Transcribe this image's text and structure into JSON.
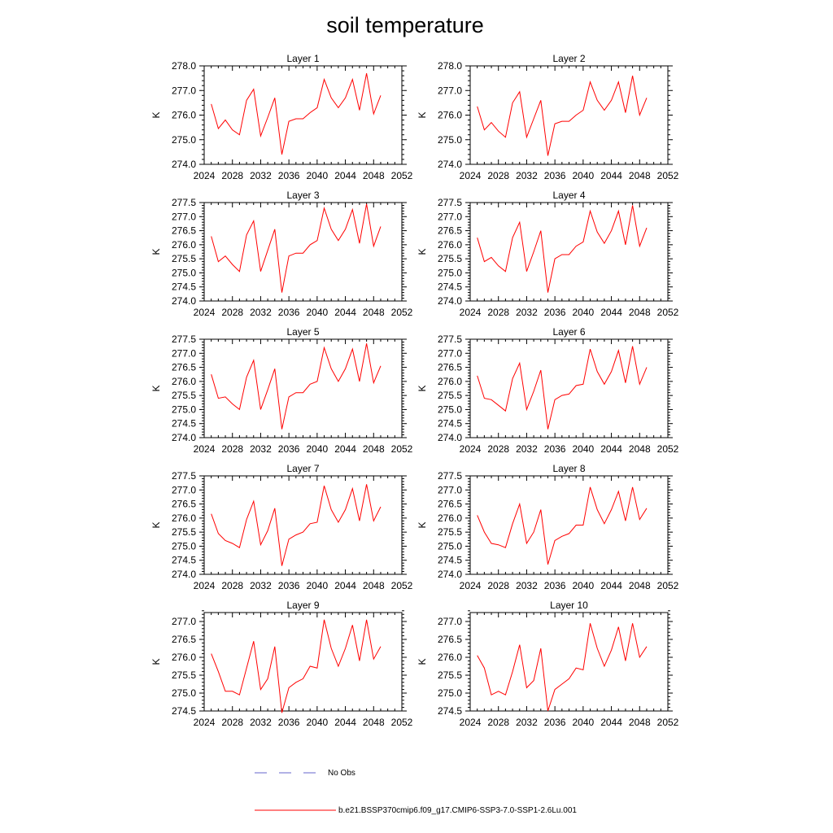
{
  "title": "soil temperature",
  "colors": {
    "model": "#ff0000",
    "obs": "#6666cc"
  },
  "legend": {
    "obs_label": "No Obs",
    "model_label": "b.e21.BSSP370cmip6.f09_g17.CMIP6-SSP3-7.0-SSP1-2.6Lu.001"
  },
  "chart_data": [
    {
      "type": "line",
      "title": "Layer 1",
      "ylabel": "K",
      "xlim": [
        2024,
        2052
      ],
      "xticks": [
        2024,
        2028,
        2032,
        2036,
        2040,
        2044,
        2048,
        2052
      ],
      "ylim": [
        274.0,
        278.0
      ],
      "yticks": [
        274.0,
        275.0,
        276.0,
        277.0,
        278.0
      ],
      "x": [
        2025,
        2026,
        2027,
        2028,
        2029,
        2030,
        2031,
        2032,
        2033,
        2034,
        2035,
        2036,
        2037,
        2038,
        2039,
        2040,
        2041,
        2042,
        2043,
        2044,
        2045,
        2046,
        2047,
        2048,
        2049
      ],
      "series": [
        {
          "values": [
            276.45,
            275.45,
            275.8,
            275.4,
            275.2,
            276.6,
            277.05,
            275.15,
            275.9,
            276.7,
            274.4,
            275.75,
            275.85,
            275.85,
            276.1,
            276.3,
            277.45,
            276.7,
            276.3,
            276.7,
            277.45,
            276.2,
            277.7,
            276.05,
            276.8
          ]
        }
      ]
    },
    {
      "type": "line",
      "title": "Layer 2",
      "ylabel": "K",
      "xlim": [
        2024,
        2052
      ],
      "xticks": [
        2024,
        2028,
        2032,
        2036,
        2040,
        2044,
        2048,
        2052
      ],
      "ylim": [
        274.0,
        278.0
      ],
      "yticks": [
        274.0,
        275.0,
        276.0,
        277.0,
        278.0
      ],
      "x": [
        2025,
        2026,
        2027,
        2028,
        2029,
        2030,
        2031,
        2032,
        2033,
        2034,
        2035,
        2036,
        2037,
        2038,
        2039,
        2040,
        2041,
        2042,
        2043,
        2044,
        2045,
        2046,
        2047,
        2048,
        2049
      ],
      "series": [
        {
          "values": [
            276.35,
            275.4,
            275.7,
            275.35,
            275.1,
            276.5,
            276.95,
            275.1,
            275.85,
            276.6,
            274.35,
            275.65,
            275.75,
            275.75,
            276.0,
            276.2,
            277.35,
            276.6,
            276.2,
            276.6,
            277.35,
            276.1,
            277.6,
            276.0,
            276.7
          ]
        }
      ]
    },
    {
      "type": "line",
      "title": "Layer 3",
      "ylabel": "K",
      "xlim": [
        2024,
        2052
      ],
      "xticks": [
        2024,
        2028,
        2032,
        2036,
        2040,
        2044,
        2048,
        2052
      ],
      "ylim": [
        274.0,
        277.5
      ],
      "yticks": [
        274.0,
        274.5,
        275.0,
        275.5,
        276.0,
        276.5,
        277.0,
        277.5
      ],
      "x": [
        2025,
        2026,
        2027,
        2028,
        2029,
        2030,
        2031,
        2032,
        2033,
        2034,
        2035,
        2036,
        2037,
        2038,
        2039,
        2040,
        2041,
        2042,
        2043,
        2044,
        2045,
        2046,
        2047,
        2048,
        2049
      ],
      "series": [
        {
          "values": [
            276.3,
            275.4,
            275.6,
            275.3,
            275.05,
            276.35,
            276.85,
            275.05,
            275.8,
            276.55,
            274.3,
            275.6,
            275.7,
            275.7,
            276.0,
            276.15,
            277.3,
            276.55,
            276.15,
            276.55,
            277.25,
            276.05,
            277.45,
            275.95,
            276.65
          ]
        }
      ]
    },
    {
      "type": "line",
      "title": "Layer 4",
      "ylabel": "K",
      "xlim": [
        2024,
        2052
      ],
      "xticks": [
        2024,
        2028,
        2032,
        2036,
        2040,
        2044,
        2048,
        2052
      ],
      "ylim": [
        274.0,
        277.5
      ],
      "yticks": [
        274.0,
        274.5,
        275.0,
        275.5,
        276.0,
        276.5,
        277.0,
        277.5
      ],
      "x": [
        2025,
        2026,
        2027,
        2028,
        2029,
        2030,
        2031,
        2032,
        2033,
        2034,
        2035,
        2036,
        2037,
        2038,
        2039,
        2040,
        2041,
        2042,
        2043,
        2044,
        2045,
        2046,
        2047,
        2048,
        2049
      ],
      "series": [
        {
          "values": [
            276.25,
            275.4,
            275.55,
            275.25,
            275.05,
            276.25,
            276.8,
            275.05,
            275.75,
            276.5,
            274.3,
            275.5,
            275.65,
            275.65,
            275.95,
            276.1,
            277.2,
            276.45,
            276.05,
            276.5,
            277.2,
            276.0,
            277.4,
            275.95,
            276.6
          ]
        }
      ]
    },
    {
      "type": "line",
      "title": "Layer 5",
      "ylabel": "K",
      "xlim": [
        2024,
        2052
      ],
      "xticks": [
        2024,
        2028,
        2032,
        2036,
        2040,
        2044,
        2048,
        2052
      ],
      "ylim": [
        274.0,
        277.5
      ],
      "yticks": [
        274.0,
        274.5,
        275.0,
        275.5,
        276.0,
        276.5,
        277.0,
        277.5
      ],
      "x": [
        2025,
        2026,
        2027,
        2028,
        2029,
        2030,
        2031,
        2032,
        2033,
        2034,
        2035,
        2036,
        2037,
        2038,
        2039,
        2040,
        2041,
        2042,
        2043,
        2044,
        2045,
        2046,
        2047,
        2048,
        2049
      ],
      "series": [
        {
          "values": [
            276.25,
            275.4,
            275.45,
            275.2,
            275.0,
            276.15,
            276.75,
            275.0,
            275.7,
            276.45,
            274.3,
            275.45,
            275.6,
            275.6,
            275.9,
            276.0,
            277.2,
            276.45,
            276.0,
            276.45,
            277.15,
            276.0,
            277.35,
            275.95,
            276.55
          ]
        }
      ]
    },
    {
      "type": "line",
      "title": "Layer 6",
      "ylabel": "K",
      "xlim": [
        2024,
        2052
      ],
      "xticks": [
        2024,
        2028,
        2032,
        2036,
        2040,
        2044,
        2048,
        2052
      ],
      "ylim": [
        274.0,
        277.5
      ],
      "yticks": [
        274.0,
        274.5,
        275.0,
        275.5,
        276.0,
        276.5,
        277.0,
        277.5
      ],
      "x": [
        2025,
        2026,
        2027,
        2028,
        2029,
        2030,
        2031,
        2032,
        2033,
        2034,
        2035,
        2036,
        2037,
        2038,
        2039,
        2040,
        2041,
        2042,
        2043,
        2044,
        2045,
        2046,
        2047,
        2048,
        2049
      ],
      "series": [
        {
          "values": [
            276.2,
            275.4,
            275.35,
            275.15,
            274.95,
            276.1,
            276.65,
            275.0,
            275.65,
            276.4,
            274.3,
            275.35,
            275.5,
            275.55,
            275.85,
            275.9,
            277.15,
            276.35,
            275.9,
            276.35,
            277.1,
            275.95,
            277.25,
            275.9,
            276.5
          ]
        }
      ]
    },
    {
      "type": "line",
      "title": "Layer 7",
      "ylabel": "K",
      "xlim": [
        2024,
        2052
      ],
      "xticks": [
        2024,
        2028,
        2032,
        2036,
        2040,
        2044,
        2048,
        2052
      ],
      "ylim": [
        274.0,
        277.5
      ],
      "yticks": [
        274.0,
        274.5,
        275.0,
        275.5,
        276.0,
        276.5,
        277.0,
        277.5
      ],
      "x": [
        2025,
        2026,
        2027,
        2028,
        2029,
        2030,
        2031,
        2032,
        2033,
        2034,
        2035,
        2036,
        2037,
        2038,
        2039,
        2040,
        2041,
        2042,
        2043,
        2044,
        2045,
        2046,
        2047,
        2048,
        2049
      ],
      "series": [
        {
          "values": [
            276.15,
            275.45,
            275.2,
            275.1,
            274.95,
            275.95,
            276.6,
            275.05,
            275.55,
            276.35,
            274.3,
            275.25,
            275.4,
            275.5,
            275.8,
            275.85,
            277.15,
            276.3,
            275.85,
            276.3,
            277.05,
            275.9,
            277.2,
            275.9,
            276.4
          ]
        }
      ]
    },
    {
      "type": "line",
      "title": "Layer 8",
      "ylabel": "K",
      "xlim": [
        2024,
        2052
      ],
      "xticks": [
        2024,
        2028,
        2032,
        2036,
        2040,
        2044,
        2048,
        2052
      ],
      "ylim": [
        274.0,
        277.5
      ],
      "yticks": [
        274.0,
        274.5,
        275.0,
        275.5,
        276.0,
        276.5,
        277.0,
        277.5
      ],
      "x": [
        2025,
        2026,
        2027,
        2028,
        2029,
        2030,
        2031,
        2032,
        2033,
        2034,
        2035,
        2036,
        2037,
        2038,
        2039,
        2040,
        2041,
        2042,
        2043,
        2044,
        2045,
        2046,
        2047,
        2048,
        2049
      ],
      "series": [
        {
          "values": [
            276.1,
            275.5,
            275.1,
            275.05,
            274.95,
            275.8,
            276.5,
            275.1,
            275.5,
            276.3,
            274.35,
            275.2,
            275.35,
            275.45,
            275.75,
            275.75,
            277.1,
            276.3,
            275.8,
            276.3,
            276.95,
            275.9,
            277.1,
            275.95,
            276.35
          ]
        }
      ]
    },
    {
      "type": "line",
      "title": "Layer 9",
      "ylabel": "K",
      "xlim": [
        2024,
        2052
      ],
      "xticks": [
        2024,
        2028,
        2032,
        2036,
        2040,
        2044,
        2048,
        2052
      ],
      "ylim": [
        274.5,
        277.25
      ],
      "yticks": [
        274.5,
        275.0,
        275.5,
        276.0,
        276.5,
        277.0
      ],
      "x": [
        2025,
        2026,
        2027,
        2028,
        2029,
        2030,
        2031,
        2032,
        2033,
        2034,
        2035,
        2036,
        2037,
        2038,
        2039,
        2040,
        2041,
        2042,
        2043,
        2044,
        2045,
        2046,
        2047,
        2048,
        2049
      ],
      "series": [
        {
          "values": [
            276.1,
            275.6,
            275.05,
            275.05,
            274.95,
            275.7,
            276.45,
            275.1,
            275.4,
            276.3,
            274.45,
            275.15,
            275.3,
            275.4,
            275.75,
            275.7,
            277.05,
            276.25,
            275.75,
            276.25,
            276.9,
            275.9,
            277.05,
            275.95,
            276.3
          ]
        }
      ]
    },
    {
      "type": "line",
      "title": "Layer 10",
      "ylabel": "K",
      "xlim": [
        2024,
        2052
      ],
      "xticks": [
        2024,
        2028,
        2032,
        2036,
        2040,
        2044,
        2048,
        2052
      ],
      "ylim": [
        274.5,
        277.25
      ],
      "yticks": [
        274.5,
        275.0,
        275.5,
        276.0,
        276.5,
        277.0
      ],
      "x": [
        2025,
        2026,
        2027,
        2028,
        2029,
        2030,
        2031,
        2032,
        2033,
        2034,
        2035,
        2036,
        2037,
        2038,
        2039,
        2040,
        2041,
        2042,
        2043,
        2044,
        2045,
        2046,
        2047,
        2048,
        2049
      ],
      "series": [
        {
          "values": [
            276.05,
            275.7,
            274.95,
            275.05,
            274.95,
            275.6,
            276.35,
            275.15,
            275.35,
            276.25,
            274.5,
            275.1,
            275.25,
            275.4,
            275.7,
            275.65,
            276.95,
            276.25,
            275.75,
            276.2,
            276.85,
            275.9,
            276.95,
            276.0,
            276.3
          ]
        }
      ]
    }
  ]
}
